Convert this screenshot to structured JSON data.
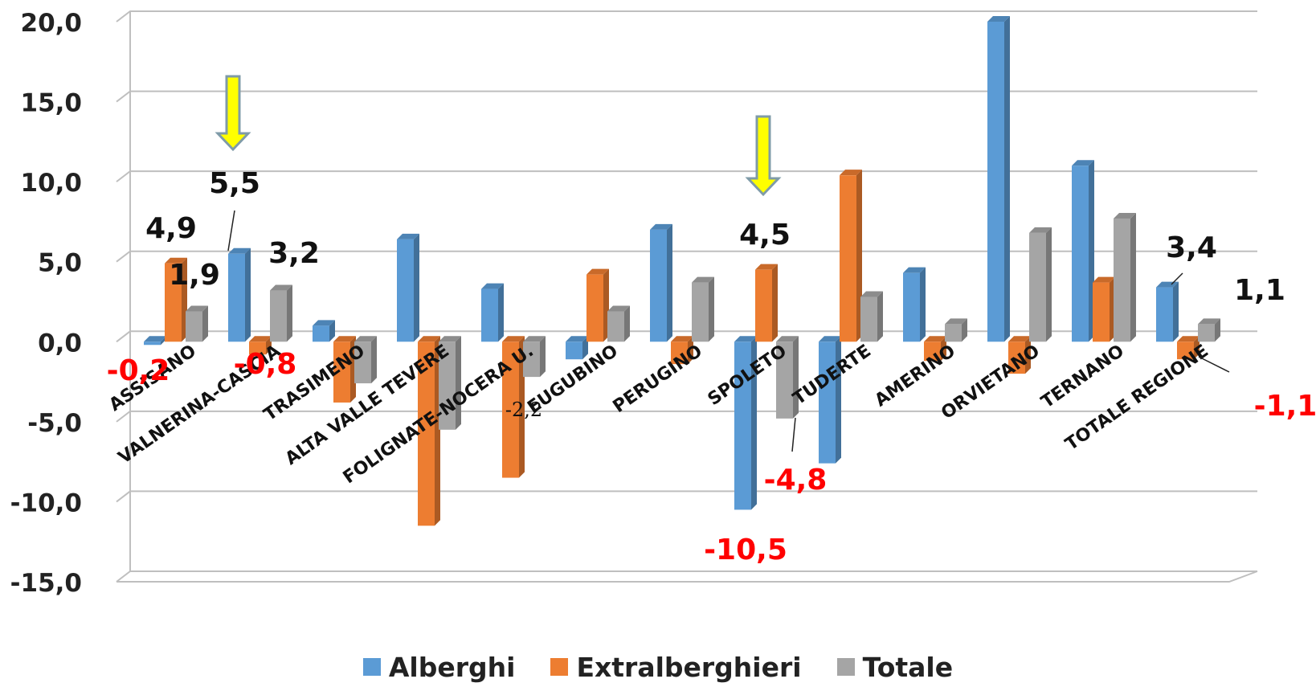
{
  "chart_data": {
    "type": "bar",
    "title": "",
    "xlabel": "",
    "ylabel": "",
    "ylim": [
      -15,
      20
    ],
    "yticks": [
      "20,0",
      "15,0",
      "10,0",
      "5,0",
      "0,0",
      "-5,0",
      "-10,0",
      "-15,0"
    ],
    "categories": [
      "ASSISANO",
      "VALNERINA-CASCIA",
      "TRASIMENO",
      "ALTA VALLE TEVERE",
      "FOLIGNATE-NOCERA U.",
      "EUGUBINO",
      "PERUGINO",
      "SPOLETO",
      "TUDERTE",
      "AMERINO",
      "ORVIETANO",
      "TERNANO",
      "TOTALE REGIONE"
    ],
    "series": [
      {
        "name": "Alberghi",
        "values": [
          -0.2,
          5.5,
          1.0,
          6.4,
          3.3,
          -1.1,
          7.0,
          -10.5,
          -7.6,
          4.3,
          20.0,
          11.0,
          3.4
        ]
      },
      {
        "name": "Extralberghieri",
        "values": [
          4.9,
          -0.8,
          -3.8,
          -11.5,
          -8.5,
          4.2,
          -1.4,
          4.5,
          10.4,
          -1.2,
          -2.0,
          3.7,
          -1.1
        ]
      },
      {
        "name": "Totale",
        "values": [
          1.9,
          3.2,
          -2.6,
          -5.5,
          -2.2,
          1.9,
          3.7,
          -4.8,
          2.8,
          1.1,
          6.8,
          7.7,
          1.1
        ]
      }
    ],
    "colors": {
      "Alberghi": "#5B9BD5",
      "Extralberghieri": "#ED7D31",
      "Totale": "#A5A5A5"
    },
    "grid": true,
    "legend_position": "bottom",
    "data_labels": [
      {
        "text": "4,9",
        "color": "black"
      },
      {
        "text": "1,9",
        "color": "black"
      },
      {
        "text": "-0,2",
        "color": "red"
      },
      {
        "text": "5,5",
        "color": "black"
      },
      {
        "text": "3,2",
        "color": "black"
      },
      {
        "text": "-0,8",
        "color": "red"
      },
      {
        "text": "-2,2",
        "color": "black"
      },
      {
        "text": "4,5",
        "color": "black"
      },
      {
        "text": "-4,8",
        "color": "red"
      },
      {
        "text": "-10,5",
        "color": "red"
      },
      {
        "text": "3,4",
        "color": "black"
      },
      {
        "text": "1,1",
        "color": "black"
      },
      {
        "text": "-1,1",
        "color": "red"
      }
    ],
    "annotations": [
      {
        "type": "arrow",
        "category": "VALNERINA-CASCIA"
      },
      {
        "type": "arrow",
        "category": "SPOLETO"
      }
    ]
  }
}
